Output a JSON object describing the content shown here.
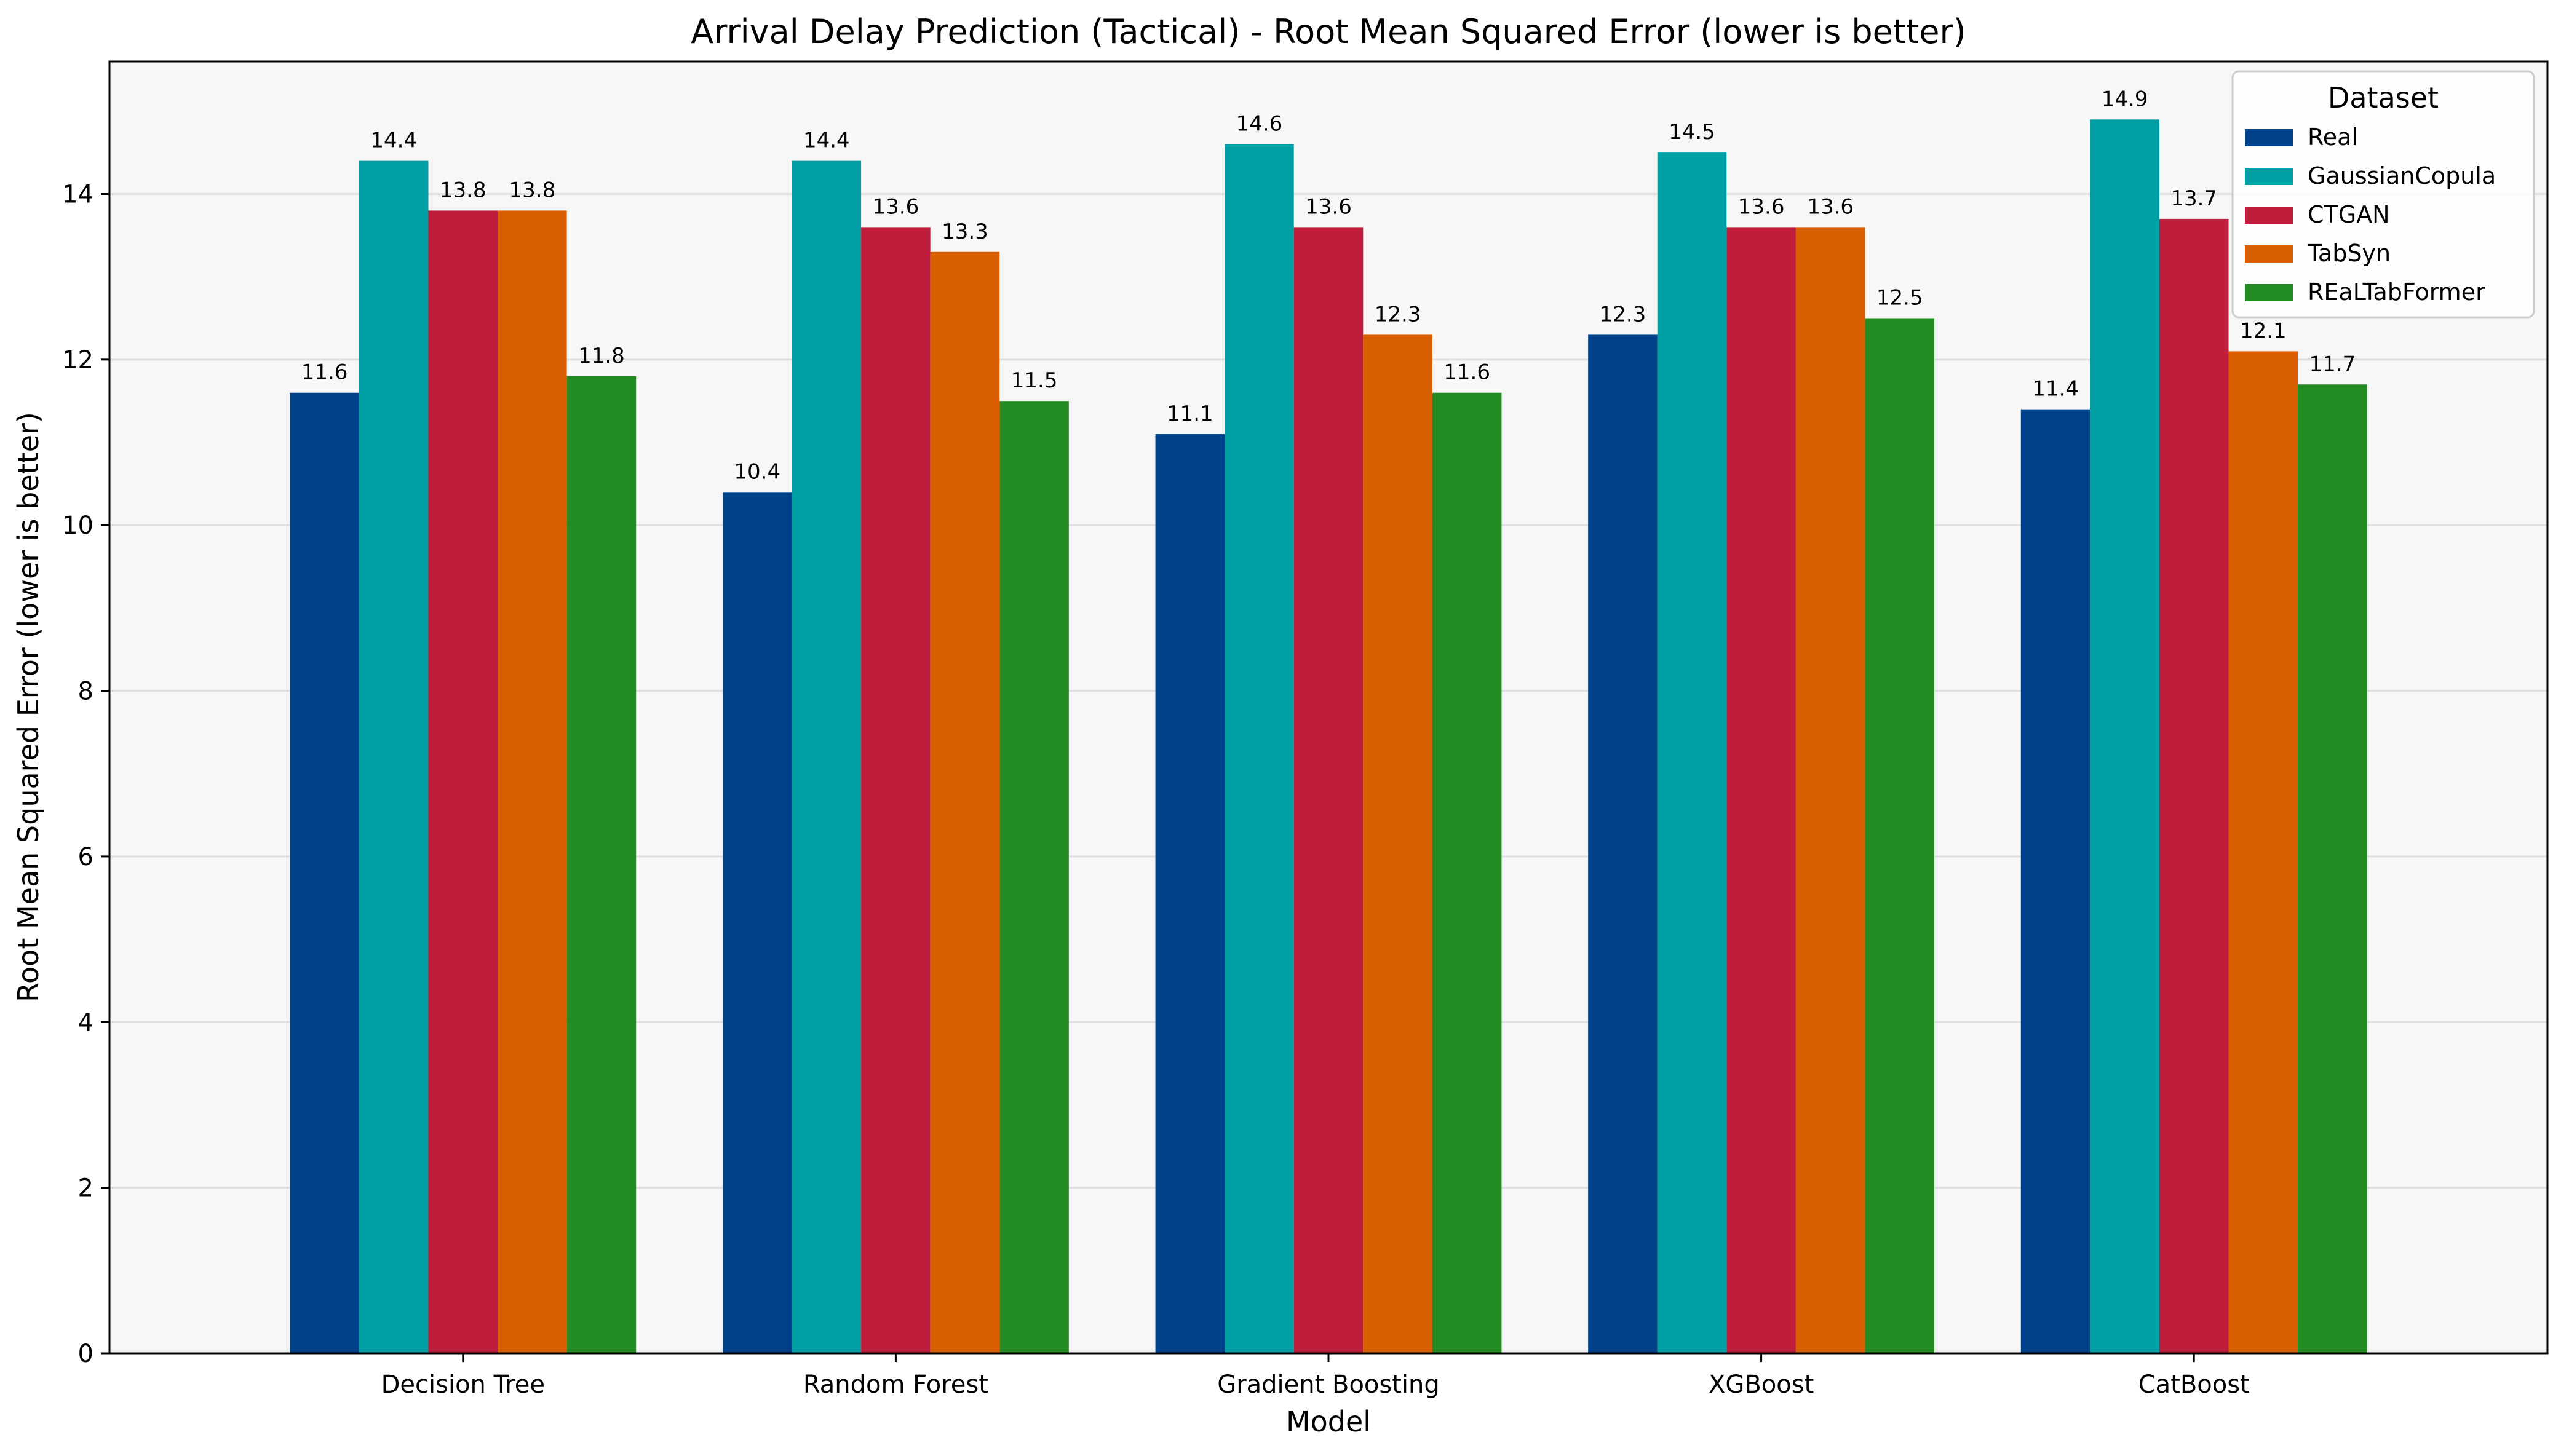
{
  "chart_data": {
    "type": "bar",
    "title": "Arrival Delay Prediction (Tactical) - Root Mean Squared Error (lower is better)",
    "xlabel": "Model",
    "ylabel": "Root Mean Squared Error (lower is better)",
    "categories": [
      "Decision Tree",
      "Random Forest",
      "Gradient Boosting",
      "XGBoost",
      "CatBoost"
    ],
    "ylim": [
      0,
      15.6
    ],
    "yticks": [
      0,
      2,
      4,
      6,
      8,
      10,
      12,
      14
    ],
    "grid": "y",
    "legend": {
      "title": "Dataset",
      "placement": "top-right"
    },
    "series": [
      {
        "name": "Real",
        "color": "#00428a",
        "values": [
          11.6,
          10.4,
          11.1,
          12.3,
          11.4
        ],
        "labels": [
          "11.6",
          "10.4",
          "11.1",
          "12.3",
          "11.4"
        ]
      },
      {
        "name": "GaussianCopula",
        "color": "#00a0a4",
        "values": [
          14.4,
          14.4,
          14.6,
          14.5,
          14.9
        ],
        "labels": [
          "14.4",
          "14.4",
          "14.6",
          "14.5",
          "14.9"
        ]
      },
      {
        "name": "CTGAN",
        "color": "#be1e3c",
        "values": [
          13.8,
          13.6,
          13.6,
          13.6,
          13.7
        ],
        "labels": [
          "13.8",
          "13.6",
          "13.6",
          "13.6",
          "13.7"
        ]
      },
      {
        "name": "TabSyn",
        "color": "#d95f02",
        "values": [
          13.8,
          13.3,
          12.3,
          13.6,
          12.1
        ],
        "labels": [
          "13.8",
          "13.3",
          "12.3",
          "13.6",
          "12.1"
        ]
      },
      {
        "name": "REaLTabFormer",
        "color": "#228b22",
        "values": [
          11.8,
          11.5,
          11.6,
          12.5,
          11.7
        ],
        "labels": [
          "11.8",
          "11.5",
          "11.6",
          "12.5",
          "11.7"
        ]
      }
    ]
  }
}
